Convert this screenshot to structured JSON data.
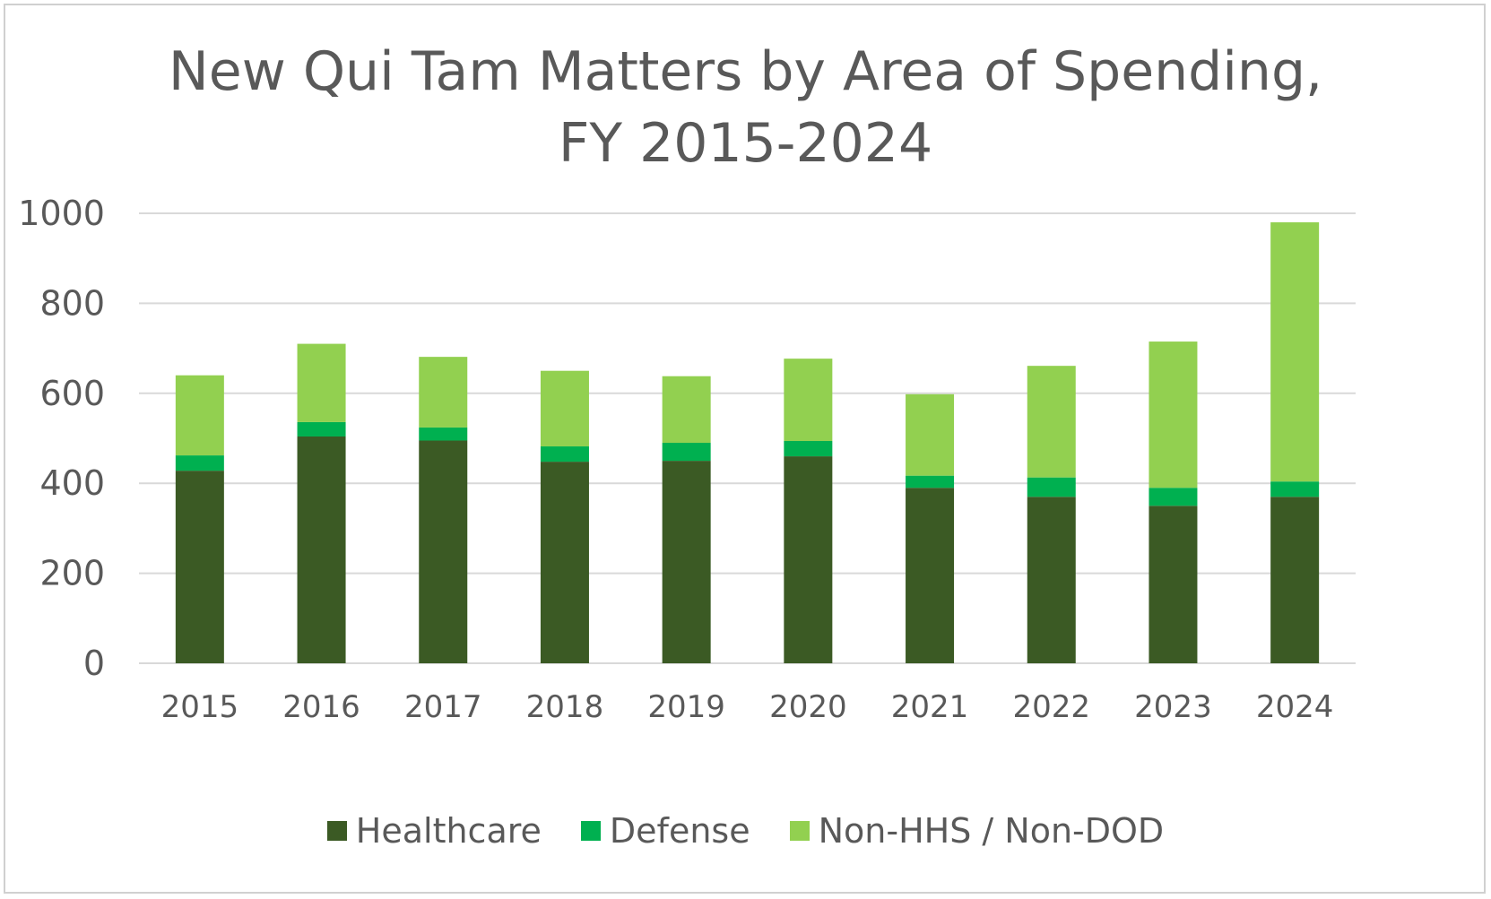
{
  "chart_data": {
    "type": "bar",
    "stacked": true,
    "title": "New Qui Tam Matters by Area of Spending,",
    "subtitle": "FY 2015-2024",
    "xlabel": "",
    "ylabel": "",
    "ylim": [
      0,
      1000
    ],
    "yticks": [
      "0",
      "200",
      "400",
      "600",
      "800",
      "1000"
    ],
    "grid": true,
    "legend_position": "bottom",
    "categories": [
      "2015",
      "2016",
      "2017",
      "2018",
      "2019",
      "2020",
      "2021",
      "2022",
      "2023",
      "2024"
    ],
    "series": [
      {
        "name": "Healthcare",
        "color": "#3b5a24",
        "values": [
          428,
          504,
          495,
          448,
          450,
          460,
          390,
          370,
          350,
          370
        ]
      },
      {
        "name": "Defense",
        "color": "#00b050",
        "values": [
          34,
          32,
          29,
          34,
          40,
          34,
          27,
          43,
          40,
          34
        ]
      },
      {
        "name": "Non-HHS / Non-DOD",
        "color": "#92d050",
        "values": [
          178,
          174,
          157,
          168,
          148,
          183,
          181,
          248,
          325,
          576
        ]
      }
    ]
  }
}
